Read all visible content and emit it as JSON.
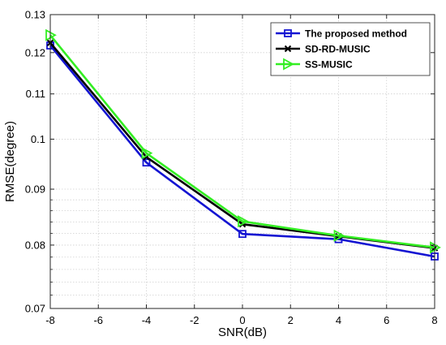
{
  "chart_data": {
    "type": "line",
    "title": "",
    "xlabel": "SNR(dB)",
    "ylabel": "RMSE(degree)",
    "y_scale": "log",
    "xlim": [
      -8,
      8
    ],
    "ylim": [
      0.07,
      0.13
    ],
    "x_ticks": [
      -8,
      -6,
      -4,
      -2,
      0,
      2,
      4,
      6,
      8
    ],
    "x_tick_labels": [
      "-8",
      "-6",
      "-4",
      "-2",
      "0",
      "2",
      "4",
      "6",
      "8"
    ],
    "y_ticks": [
      0.07,
      0.08,
      0.09,
      0.1,
      0.11,
      0.12,
      0.13
    ],
    "y_tick_labels": [
      "0.07",
      "0.08",
      "0.09",
      "0.1",
      "0.11",
      "0.12",
      "0.13"
    ],
    "y_minor_ticks": [
      0.072,
      0.074,
      0.076,
      0.078,
      0.082,
      0.084,
      0.086,
      0.088
    ],
    "grid": true,
    "legend_position": "top-right",
    "x": [
      -8,
      -4,
      0,
      4,
      8
    ],
    "series": [
      {
        "name": "The proposed method",
        "values": [
          0.1218,
          0.0952,
          0.0819,
          0.081,
          0.0781
        ],
        "color": "#1414d2",
        "marker": "square"
      },
      {
        "name": "SD-RD-MUSIC",
        "values": [
          0.1225,
          0.0963,
          0.0836,
          0.0815,
          0.0795
        ],
        "color": "#000000",
        "marker": "x"
      },
      {
        "name": "SS-MUSIC",
        "values": [
          0.1245,
          0.0971,
          0.0841,
          0.0816,
          0.0796
        ],
        "color": "#33ee22",
        "marker": "triangle-right"
      }
    ]
  }
}
